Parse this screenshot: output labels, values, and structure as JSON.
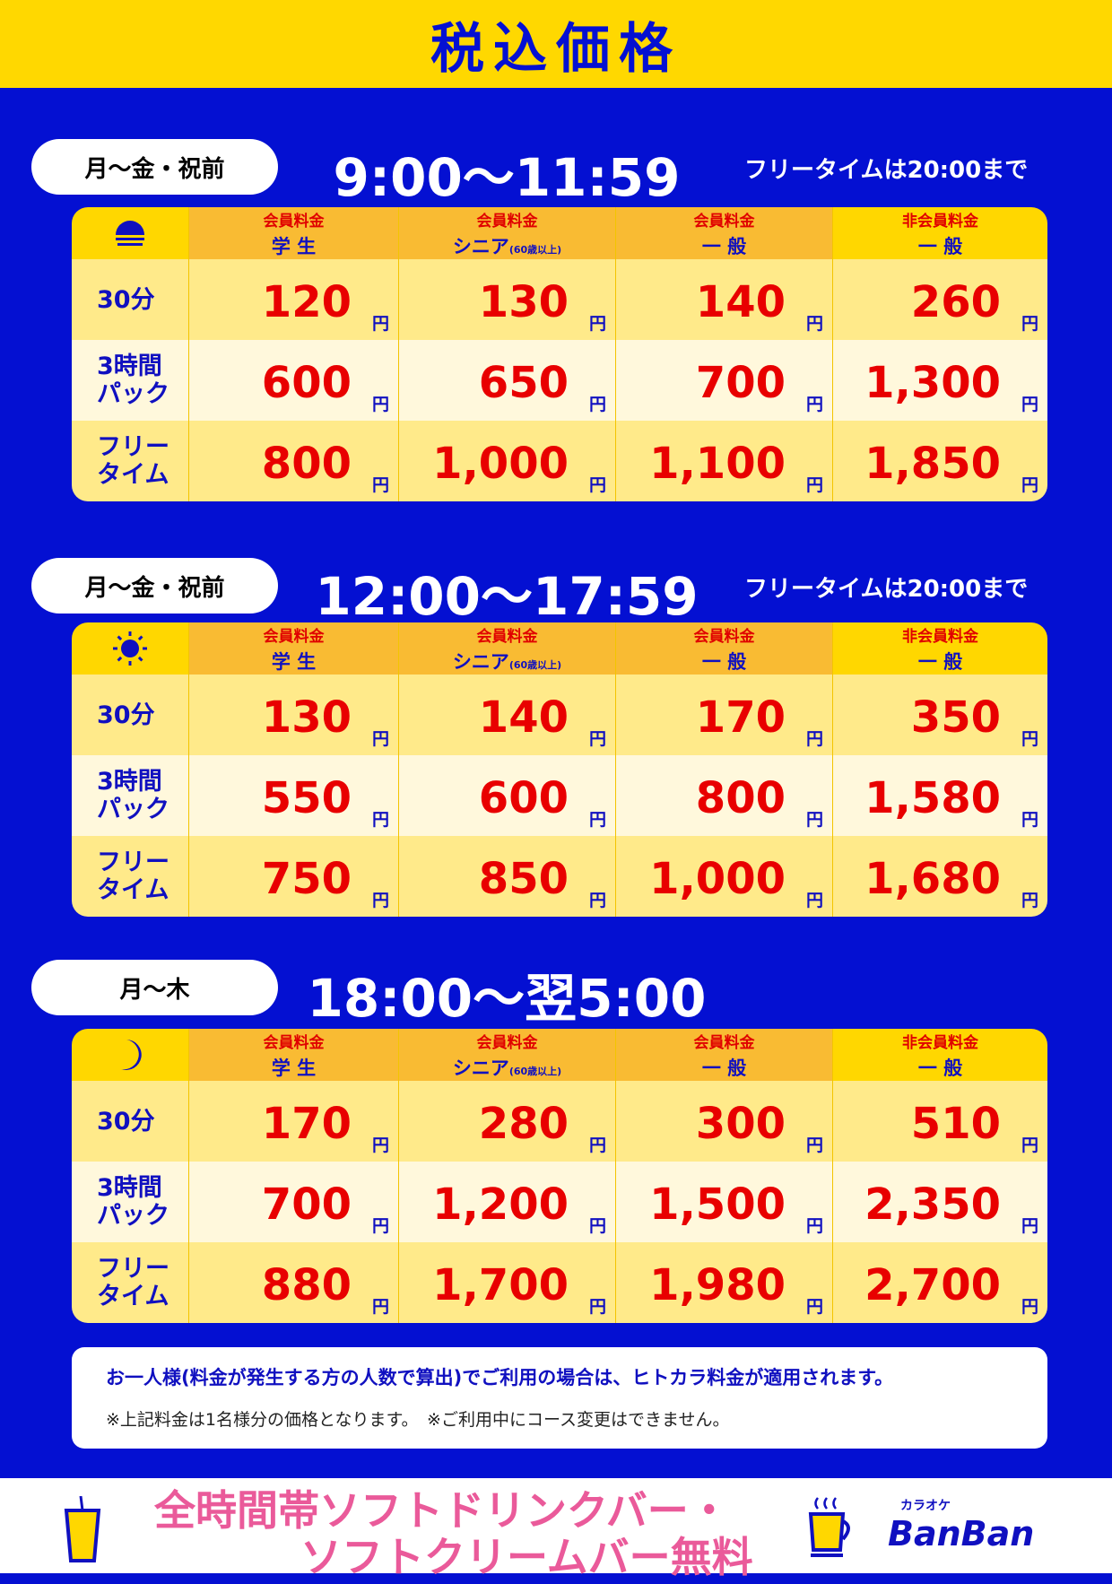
{
  "header": {
    "title": "税込価格"
  },
  "columns": [
    {
      "top": "会員料金",
      "sub": "学 生",
      "note": ""
    },
    {
      "top": "会員料金",
      "sub": "シニア",
      "note": "(60歳以上)"
    },
    {
      "top": "会員料金",
      "sub": "一 般",
      "note": ""
    },
    {
      "top": "非会員料金",
      "sub": "一 般",
      "note": ""
    }
  ],
  "rows": [
    {
      "l1": "30分",
      "l2": ""
    },
    {
      "l1": "3時間",
      "l2": "パック"
    },
    {
      "l1": "フリー",
      "l2": "タイム"
    }
  ],
  "yen": "円",
  "sections": [
    {
      "days": "月〜金・祝前",
      "time": "9:00〜11:59",
      "free_note": "フリータイムは20:00まで",
      "icon": "sunrise-icon",
      "prices": [
        [
          "120",
          "130",
          "140",
          "260"
        ],
        [
          "600",
          "650",
          "700",
          "1,300"
        ],
        [
          "800",
          "1,000",
          "1,100",
          "1,850"
        ]
      ]
    },
    {
      "days": "月〜金・祝前",
      "time": "12:00〜17:59",
      "free_note": "フリータイムは20:00まで",
      "icon": "sun-icon",
      "prices": [
        [
          "130",
          "140",
          "170",
          "350"
        ],
        [
          "550",
          "600",
          "800",
          "1,580"
        ],
        [
          "750",
          "850",
          "1,000",
          "1,680"
        ]
      ]
    },
    {
      "days": "月〜木",
      "time": "18:00〜翌5:00",
      "free_note": "",
      "icon": "moon-icon",
      "prices": [
        [
          "170",
          "280",
          "300",
          "510"
        ],
        [
          "700",
          "1,200",
          "1,500",
          "2,350"
        ],
        [
          "880",
          "1,700",
          "1,980",
          "2,700"
        ]
      ]
    }
  ],
  "note": {
    "main": "お一人様(料金が発生する方の人数で算出)でご利用の場合は、ヒトカラ料金が適用されます。",
    "sub": "※上記料金は1名様分の価格となります。　※ご利用中にコース変更はできません。"
  },
  "footer": {
    "promo_line1": "全時間帯ソフトドリンクバー・",
    "promo_line2": "ソフトクリームバー無料",
    "logo_small": "カラオケ",
    "logo": "BanBan"
  },
  "colors": {
    "background": "#0410d2",
    "header": "#ffd800",
    "price": "#e80000",
    "promo": "#ea5a9a"
  }
}
